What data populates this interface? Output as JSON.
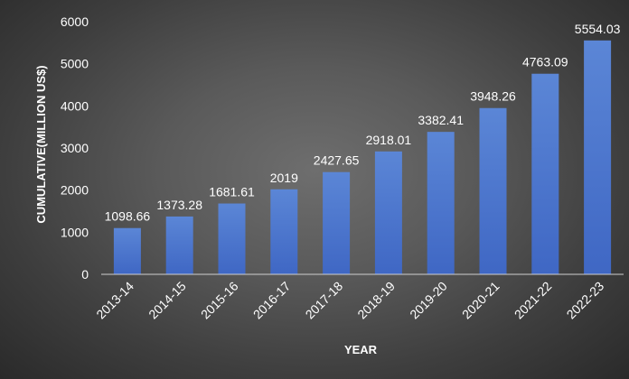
{
  "chart_data": {
    "type": "bar",
    "title": "",
    "xlabel": "YEAR",
    "ylabel": "CUMULATIVE(MILLION US$)",
    "categories": [
      "2013-14",
      "2014-15",
      "2015-16",
      "2016-17",
      "2017-18",
      "2018-19",
      "2019-20",
      "2020-21",
      "2021-22",
      "2022-23"
    ],
    "values": [
      1098.66,
      1373.28,
      1681.61,
      2019,
      2427.65,
      2918.01,
      3382.41,
      3948.26,
      4763.09,
      5554.03
    ],
    "value_labels": [
      "1098.66",
      "1373.28",
      "1681.61",
      "2019",
      "2427.65",
      "2918.01",
      "3382.41",
      "3948.26",
      "4763.09",
      "5554.03"
    ],
    "ylim": [
      0,
      6000
    ],
    "yticks": [
      0,
      1000,
      2000,
      3000,
      4000,
      5000,
      6000
    ],
    "grid": false,
    "legend": "none",
    "colors": {
      "bar_top": "#5b86d6",
      "bar_bottom": "#3f67c4",
      "text": "#ffffff",
      "axis_line": "#cfcfcf"
    }
  }
}
